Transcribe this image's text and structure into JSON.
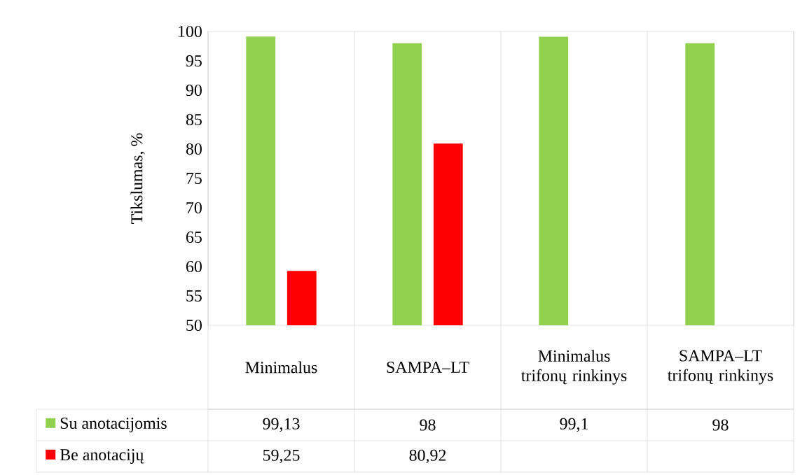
{
  "chart_data": {
    "type": "bar",
    "ylabel": "Tikslumas, %",
    "categories": [
      "Minimalus",
      "SAMPA–LT",
      "Minimalus trifonų rinkinys",
      "SAMPA–LT trifonų rinkinys"
    ],
    "series": [
      {
        "name": "Su anotacijomis",
        "color": "#92d050",
        "values": [
          99.13,
          98,
          99.1,
          98
        ],
        "value_labels": [
          "99,13",
          "98",
          "99,1",
          "98"
        ]
      },
      {
        "name": "Be anotacijų",
        "color": "#ff0000",
        "values": [
          59.25,
          80.92,
          null,
          null
        ],
        "value_labels": [
          "59,25",
          "80,92",
          null,
          null
        ]
      }
    ],
    "ylim": [
      50,
      100
    ],
    "yticks": [
      50,
      55,
      60,
      65,
      70,
      75,
      80,
      85,
      90,
      95,
      100
    ],
    "legend": "bottom"
  }
}
